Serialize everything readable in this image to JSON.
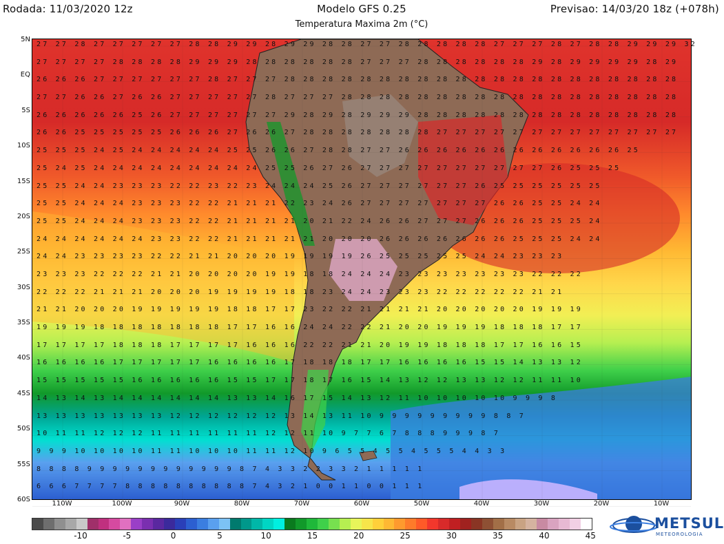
{
  "header": {
    "run": "Rodada: 11/03/2020 12z",
    "model": "Modelo GFS 0.25",
    "forecast": "Previsao: 14/03/20 18z (+078h)",
    "subtitle": "Temperatura Maxima 2m (°C)"
  },
  "map": {
    "lat_labels": [
      "5N",
      "EQ",
      "5S",
      "10S",
      "15S",
      "20S",
      "25S",
      "30S",
      "35S",
      "40S",
      "45S",
      "50S",
      "55S",
      "60S"
    ],
    "lon_labels": [
      "110W",
      "100W",
      "90W",
      "80W",
      "70W",
      "60W",
      "50W",
      "40W",
      "30W",
      "20W",
      "10W"
    ],
    "temperature_rows": [
      {
        "lat": "5N",
        "values": "27 27 28 27 27 27 27 27 28 28 29 29 28 29 29 28 28 27 27 28 28 28 28 28 27 27 27 28 27 28 28 29 29 29 32"
      },
      {
        "lat": "EQ",
        "values": "27 27 27 27 28 28 28 28 29 29 29 28 28 28 28 28 28 27 27 27 28 28 28 28 28 28 29 28 29 29 29 29 28 29"
      },
      {
        "lat": "2S",
        "values": "26 26 26 27 27 27 27 27 27 28 27 27 27 28 28 28 28 28 28 28 28 28 28 28 28 28 28 28 28 28 28 28 28 28"
      },
      {
        "lat": "5S",
        "values": "27 27 26 26 27 26 26 27 27 27 27 27 28 27 27 27 28 28 28 28 28 28 28 28 28 28 28 28 28 28 28 28 28 28"
      },
      {
        "lat": "7S",
        "values": "26 26 26 26 26 25 26 27 27 27 27 27 27 29 28 29 28 29 29 29 28 28 28 28 28 28 28 28 28 28 28 28 28 28"
      },
      {
        "lat": "10S",
        "values": "26 26 25 25 25 25 25 26 26 26 27 26 26 27 28 28 28 28 28 28 28 27 27 27 27 27 27 27 27 27 27 27 27 27"
      },
      {
        "lat": "12S",
        "values": "25 25 25 24 25 24 24 24 24 24 25 25 26 26 27 28 28 27 27 26 26 26 26 26 26 26 26 26 26 26 26 25"
      },
      {
        "lat": "15S",
        "values": "25 24 25 24 24 24 24 24 24 24 24 24 25 25 26 27 26 27 27 27 27 27 27 27 27 27 27 26 25 25 25"
      },
      {
        "lat": "17S",
        "values": "25 25 24 24 23 23 23 22 22 23 22 23 24 24 24 25 26 27 27 27 27 27 27 26 25 25 25 25 25 25"
      },
      {
        "lat": "20S",
        "values": "25 25 24 24 24 23 23 23 22 22 21 21 21 22 23 24 26 27 27 27 27 27 27 27 26 26 25 25 24 24"
      },
      {
        "lat": "22S",
        "values": "25 25 24 24 24 23 23 23 22 22 21 21 21 21 20 21 22 24 26 26 27 27 27 26 26 26 25 25 25 24"
      },
      {
        "lat": "25S",
        "values": "24 24 24 24 24 24 23 23 22 22 21 21 21 21 21 20 20 20 26 26 26 26 26 26 26 25 25 25 24 24"
      },
      {
        "lat": "27S",
        "values": "24 24 23 23 23 23 22 22 21 21 20 20 20 19 19 19 19 26 25 25 25 25 25 24 24 23 23 23"
      },
      {
        "lat": "30S",
        "values": "23 23 23 22 22 22 21 21 20 20 20 20 19 19 18 18 24 24 24 23 23 23 23 23 23 23 22 22 22"
      },
      {
        "lat": "32S",
        "values": "22 22 22 21 21 21 20 20 20 19 19 19 19 18 18 23 24 24 23 23 23 22 22 22 22 22 21 21"
      },
      {
        "lat": "35S",
        "values": "21 21 20 20 20 19 19 19 19 19 18 18 17 17 23 22 22 21 21 21 21 20 20 20 20 20 19 19 19"
      },
      {
        "lat": "37S",
        "values": "19 19 19 18 18 18 18 18 18 18 17 17 16 16 24 24 22 22 21 20 20 19 19 19 18 18 18 17 17"
      },
      {
        "lat": "40S",
        "values": "17 17 17 17 18 18 18 17 17 17 17 16 16 16 22 22 21 21 20 19 19 18 18 18 17 17 16 16 15"
      },
      {
        "lat": "42S",
        "values": "16 16 16 16 17 17 17 17 17 16 16 16 16 17 18 18 18 17 17 16 16 16 16 15 15 14 13 13 12"
      },
      {
        "lat": "45S",
        "values": "15 15 15 15 15 16 16 16 16 16 15 15 17 17 18 17 16 15 14 13 12 12 13 13 12 12 11 11 10"
      },
      {
        "lat": "47S",
        "values": "14 13 14 13 14 14 14 14 14 14 13 13 14 16 17 15 14 13 12 11 10 10 10 10 10 9 9 9 8"
      },
      {
        "lat": "50S",
        "values": "13 13 13 13 13 13 13 12 12 12 12 12 12 13 14 13 11 10 9 9 9 9 9 9 9 9 9 8 8 7"
      },
      {
        "lat": "52S",
        "values": "10 11 11 12 12 12 11 11 11 11 11 11 12 12 11 10 9 7 7 6 7 8 8 8 9 9 9 8 7"
      },
      {
        "lat": "55S",
        "values": "9 9 9 10 10 10 10 11 11 10 10 10 11 11 12 10 9 6 5 5 4 5 5 4 5 5 5 4 4 3 3"
      },
      {
        "lat": "57S",
        "values": "8 8 8 8 9 9 9 9 9 9 9 9 9 9 9 9 8 7 4 3 3 2 2 3 3 2 1 1 1 1 1"
      },
      {
        "lat": "60S",
        "values": "6 6 6 7 7 7 7 8 8 8 8 8 8 8 8 8 8 7 4 3 2 1 0 0 1 1 0 0 1 1 1"
      }
    ]
  },
  "scale": {
    "ticks": [
      "-10",
      "-5",
      "0",
      "5",
      "10",
      "15",
      "20",
      "25",
      "30",
      "35",
      "40",
      "45"
    ],
    "colors": [
      "#4b4b4b",
      "#6e6e6e",
      "#8f8f8f",
      "#a8a8a8",
      "#c9c9c9",
      "#a0306a",
      "#c0307f",
      "#d64aa0",
      "#e070c0",
      "#9a3fc7",
      "#7a2fb0",
      "#5a28a0",
      "#3b2a9c",
      "#2a3fb8",
      "#2c5fd0",
      "#3b7ee0",
      "#5aa0ef",
      "#7cc2f5",
      "#007a6e",
      "#00988b",
      "#00b7a8",
      "#00d6c4",
      "#00f0e0",
      "#0a7a1e",
      "#11992a",
      "#1fb83a",
      "#3fd04a",
      "#77e04f",
      "#b6ef51",
      "#e8f55a",
      "#f7e54a",
      "#ffd03a",
      "#ffb833",
      "#ff9a2e",
      "#ff7b2a",
      "#ff5a28",
      "#f3372c",
      "#d82a2a",
      "#c01f22",
      "#a0221f",
      "#8a3524",
      "#8e5034",
      "#a26f47",
      "#b88a63",
      "#c9a383",
      "#d5b3a0",
      "#c88aa2",
      "#d9a3c0",
      "#e7b9d3",
      "#f1d0e4",
      "#ffffff"
    ]
  },
  "logo": {
    "name": "METSUL",
    "tagline": "METEOROLOGIA"
  }
}
